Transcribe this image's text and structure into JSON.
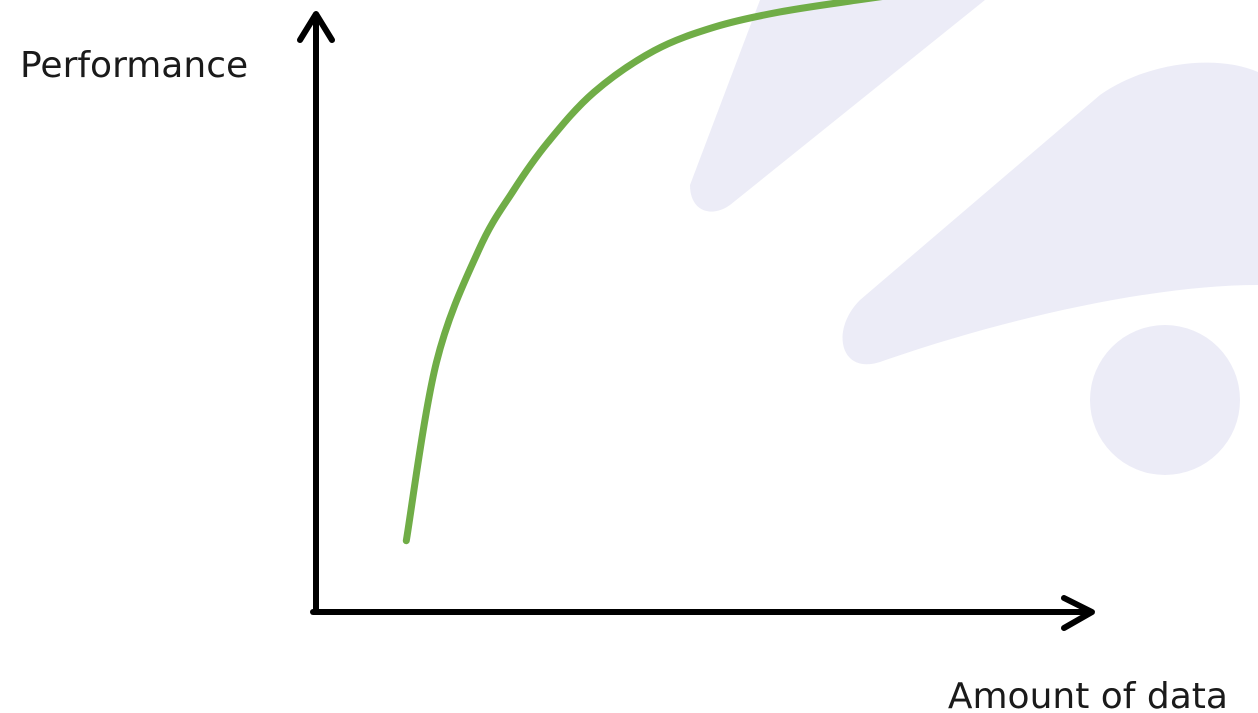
{
  "chart_data": {
    "type": "line",
    "title": "",
    "xlabel": "Amount of data",
    "ylabel": "Performance",
    "xlim": [
      0,
      10
    ],
    "ylim": [
      0,
      10
    ],
    "grid": false,
    "legend": "none",
    "series": [
      {
        "color": "#70ad47",
        "x": [
          1.17,
          1.56,
          2.11,
          2.56,
          3.0,
          3.6,
          4.38,
          5.17,
          6.0,
          7.0,
          8.1
        ],
        "y": [
          1.2,
          4.2,
          6.1,
          7.1,
          7.9,
          8.75,
          9.45,
          9.85,
          10.1,
          10.3,
          10.5
        ]
      }
    ],
    "colors": {
      "axis": "#000000",
      "watermark": "#ececf7"
    }
  }
}
